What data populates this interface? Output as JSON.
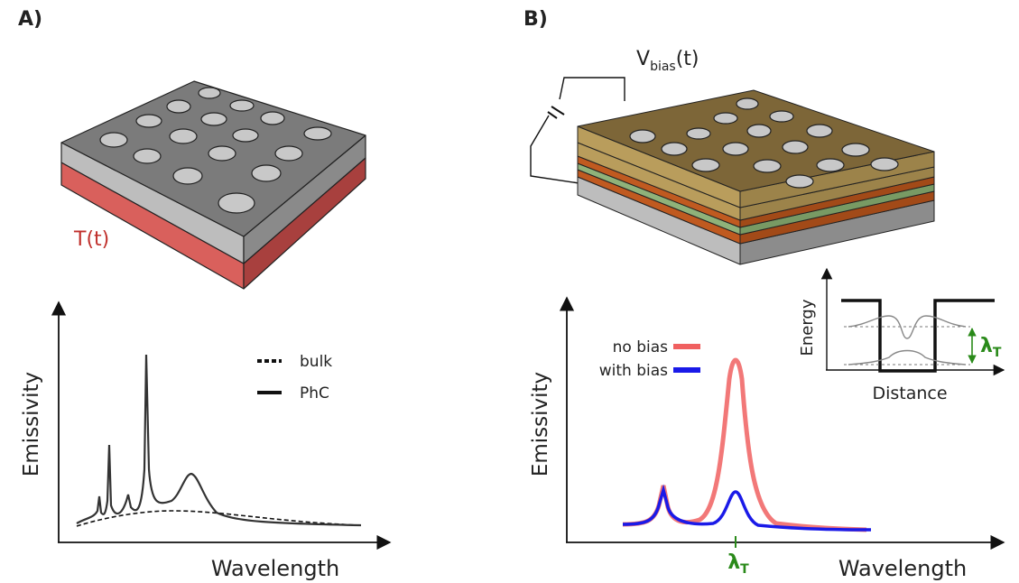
{
  "panels": [
    {
      "label": "A)",
      "temperature_label": "T(t)",
      "plot": {
        "y_label": "Emissivity",
        "x_label": "Wavelength",
        "legend": [
          "bulk",
          "PhC"
        ]
      }
    },
    {
      "label": "B)",
      "voltage_label": {
        "main": "V",
        "sub": "bias",
        "tail": "(t)"
      },
      "plot": {
        "y_label": "Emissivity",
        "x_label": "Wavelength",
        "legend": [
          "no bias",
          "with bias"
        ],
        "marker": {
          "main": "λ",
          "sub": "T"
        }
      },
      "inset": {
        "y_label": "Energy",
        "x_label": "Distance",
        "marker": {
          "main": "λ",
          "sub": "T"
        }
      }
    }
  ]
}
